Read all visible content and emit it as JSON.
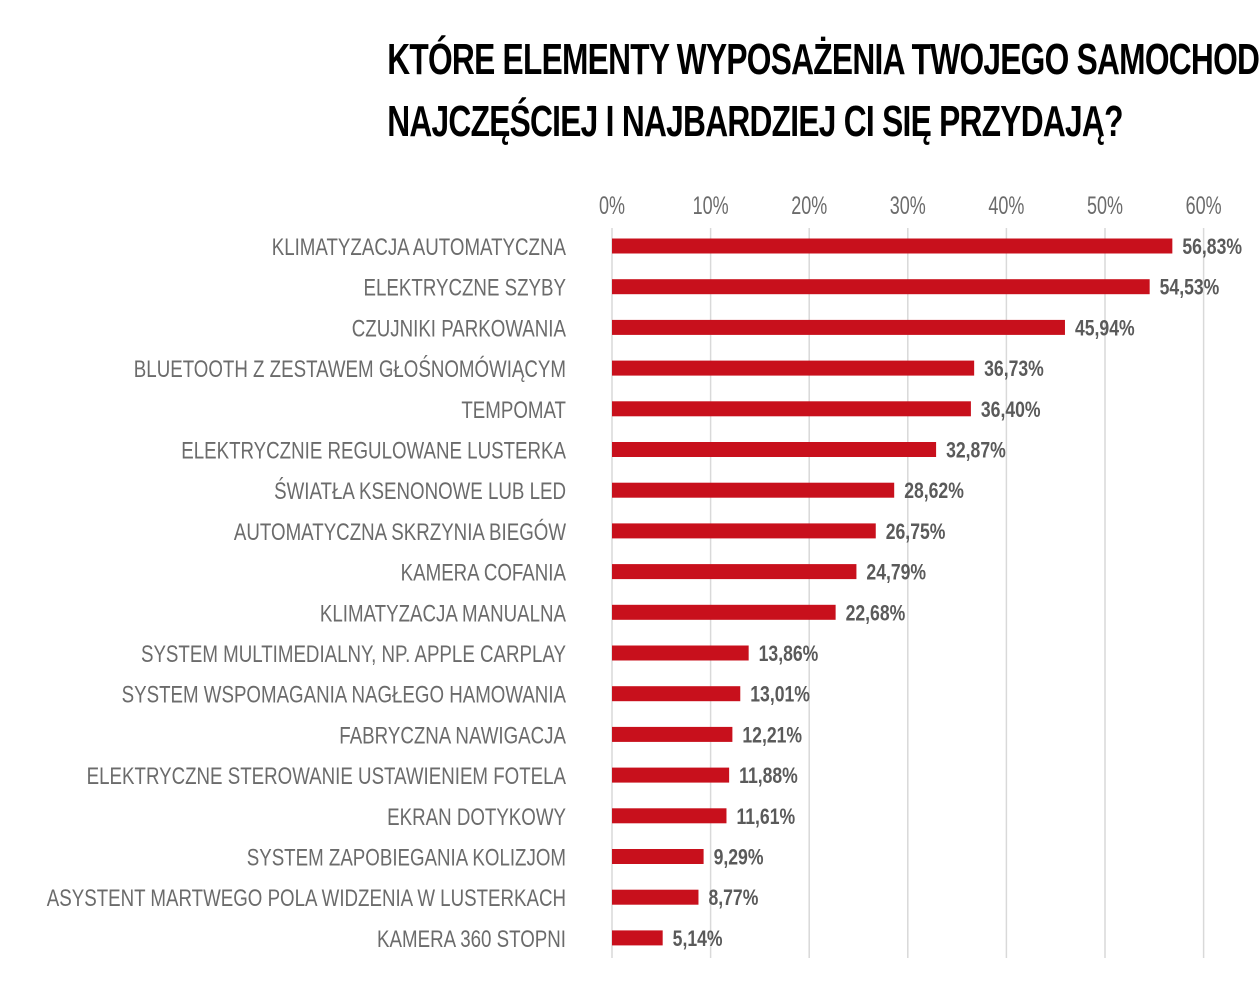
{
  "title_lines": [
    "KTÓRE ELEMENTY WYPOSAŻENIA TWOJEGO SAMOCHODU",
    "NAJCZĘŚCIEJ I NAJBARDZIEJ CI SIĘ PRZYDAJĄ?"
  ],
  "colors": {
    "bar": "#c8101c",
    "grid": "#d9d9d9",
    "label": "#6b6b6b"
  },
  "chart_data": {
    "type": "bar",
    "orientation": "horizontal",
    "title": "KTÓRE ELEMENTY WYPOSAŻENIA TWOJEGO SAMOCHODU NAJCZĘŚCIEJ I NAJBARDZIEJ CI SIĘ PRZYDAJĄ?",
    "xlabel": "",
    "ylabel": "",
    "xlim": [
      0,
      60
    ],
    "x_axis_position": "top",
    "grid": true,
    "tick_values": [
      0,
      10,
      20,
      30,
      40,
      50,
      60
    ],
    "tick_labels": [
      "0%",
      "10%",
      "20%",
      "30%",
      "40%",
      "50%",
      "60%"
    ],
    "categories": [
      "KLIMATYZACJA AUTOMATYCZNA",
      "ELEKTRYCZNE SZYBY",
      "CZUJNIKI PARKOWANIA",
      "BLUETOOTH Z ZESTAWEM GŁOŚNOMÓWIĄCYM",
      "TEMPOMAT",
      "ELEKTRYCZNIE REGULOWANE LUSTERKA",
      "ŚWIATŁA KSENONOWE LUB LED",
      "AUTOMATYCZNA SKRZYNIA BIEGÓW",
      "KAMERA COFANIA",
      "KLIMATYZACJA MANUALNA",
      "SYSTEM MULTIMEDIALNY, NP. APPLE CARPLAY",
      "SYSTEM WSPOMAGANIA NAGŁEGO HAMOWANIA",
      "FABRYCZNA NAWIGACJA",
      "ELEKTRYCZNE STEROWANIE USTAWIENIEM FOTELA",
      "EKRAN DOTYKOWY",
      "SYSTEM ZAPOBIEGANIA KOLIZJOM",
      "ASYSTENT MARTWEGO POLA WIDZENIA W LUSTERKACH",
      "KAMERA 360 STOPNI"
    ],
    "values": [
      56.83,
      54.53,
      45.94,
      36.73,
      36.4,
      32.87,
      28.62,
      26.75,
      24.79,
      22.68,
      13.86,
      13.01,
      12.21,
      11.88,
      11.61,
      9.29,
      8.77,
      5.14
    ],
    "data_labels": [
      "56,83%",
      "54,53%",
      "45,94%",
      "36,73%",
      "36,40%",
      "32,87%",
      "28,62%",
      "26,75%",
      "24,79%",
      "22,68%",
      "13,86%",
      "13,01%",
      "12,21%",
      "11,88%",
      "11,61%",
      "9,29%",
      "8,77%",
      "5,14%"
    ]
  }
}
